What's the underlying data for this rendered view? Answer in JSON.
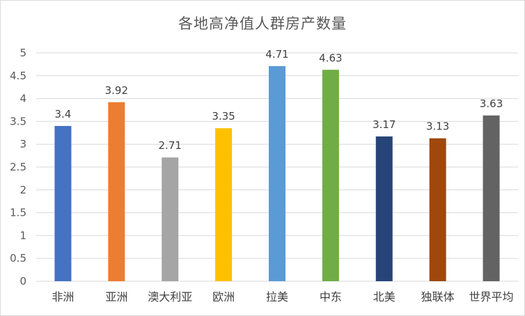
{
  "chart_data": {
    "type": "bar",
    "title": "各地高净值人群房产数量",
    "categories": [
      "非洲",
      "亚洲",
      "澳大利亚",
      "欧洲",
      "拉美",
      "中东",
      "北美",
      "独联体",
      "世界平均"
    ],
    "values": [
      3.4,
      3.92,
      2.71,
      3.35,
      4.71,
      4.63,
      3.17,
      3.13,
      3.63
    ],
    "value_labels": [
      "3.4",
      "3.92",
      "2.71",
      "3.35",
      "4.71",
      "4.63",
      "3.17",
      "3.13",
      "3.63"
    ],
    "colors": [
      "#4472C4",
      "#ED7D31",
      "#A5A5A5",
      "#FFC000",
      "#5B9BD5",
      "#70AD47",
      "#264478",
      "#9E480E",
      "#636363"
    ],
    "yticks": [
      "0",
      "0.5",
      "1",
      "1.5",
      "2",
      "2.5",
      "3",
      "3.5",
      "4",
      "4.5",
      "5"
    ],
    "ylim": [
      0,
      5
    ],
    "grid": true,
    "gridColor": "#d9d9d9",
    "legend": "none"
  }
}
